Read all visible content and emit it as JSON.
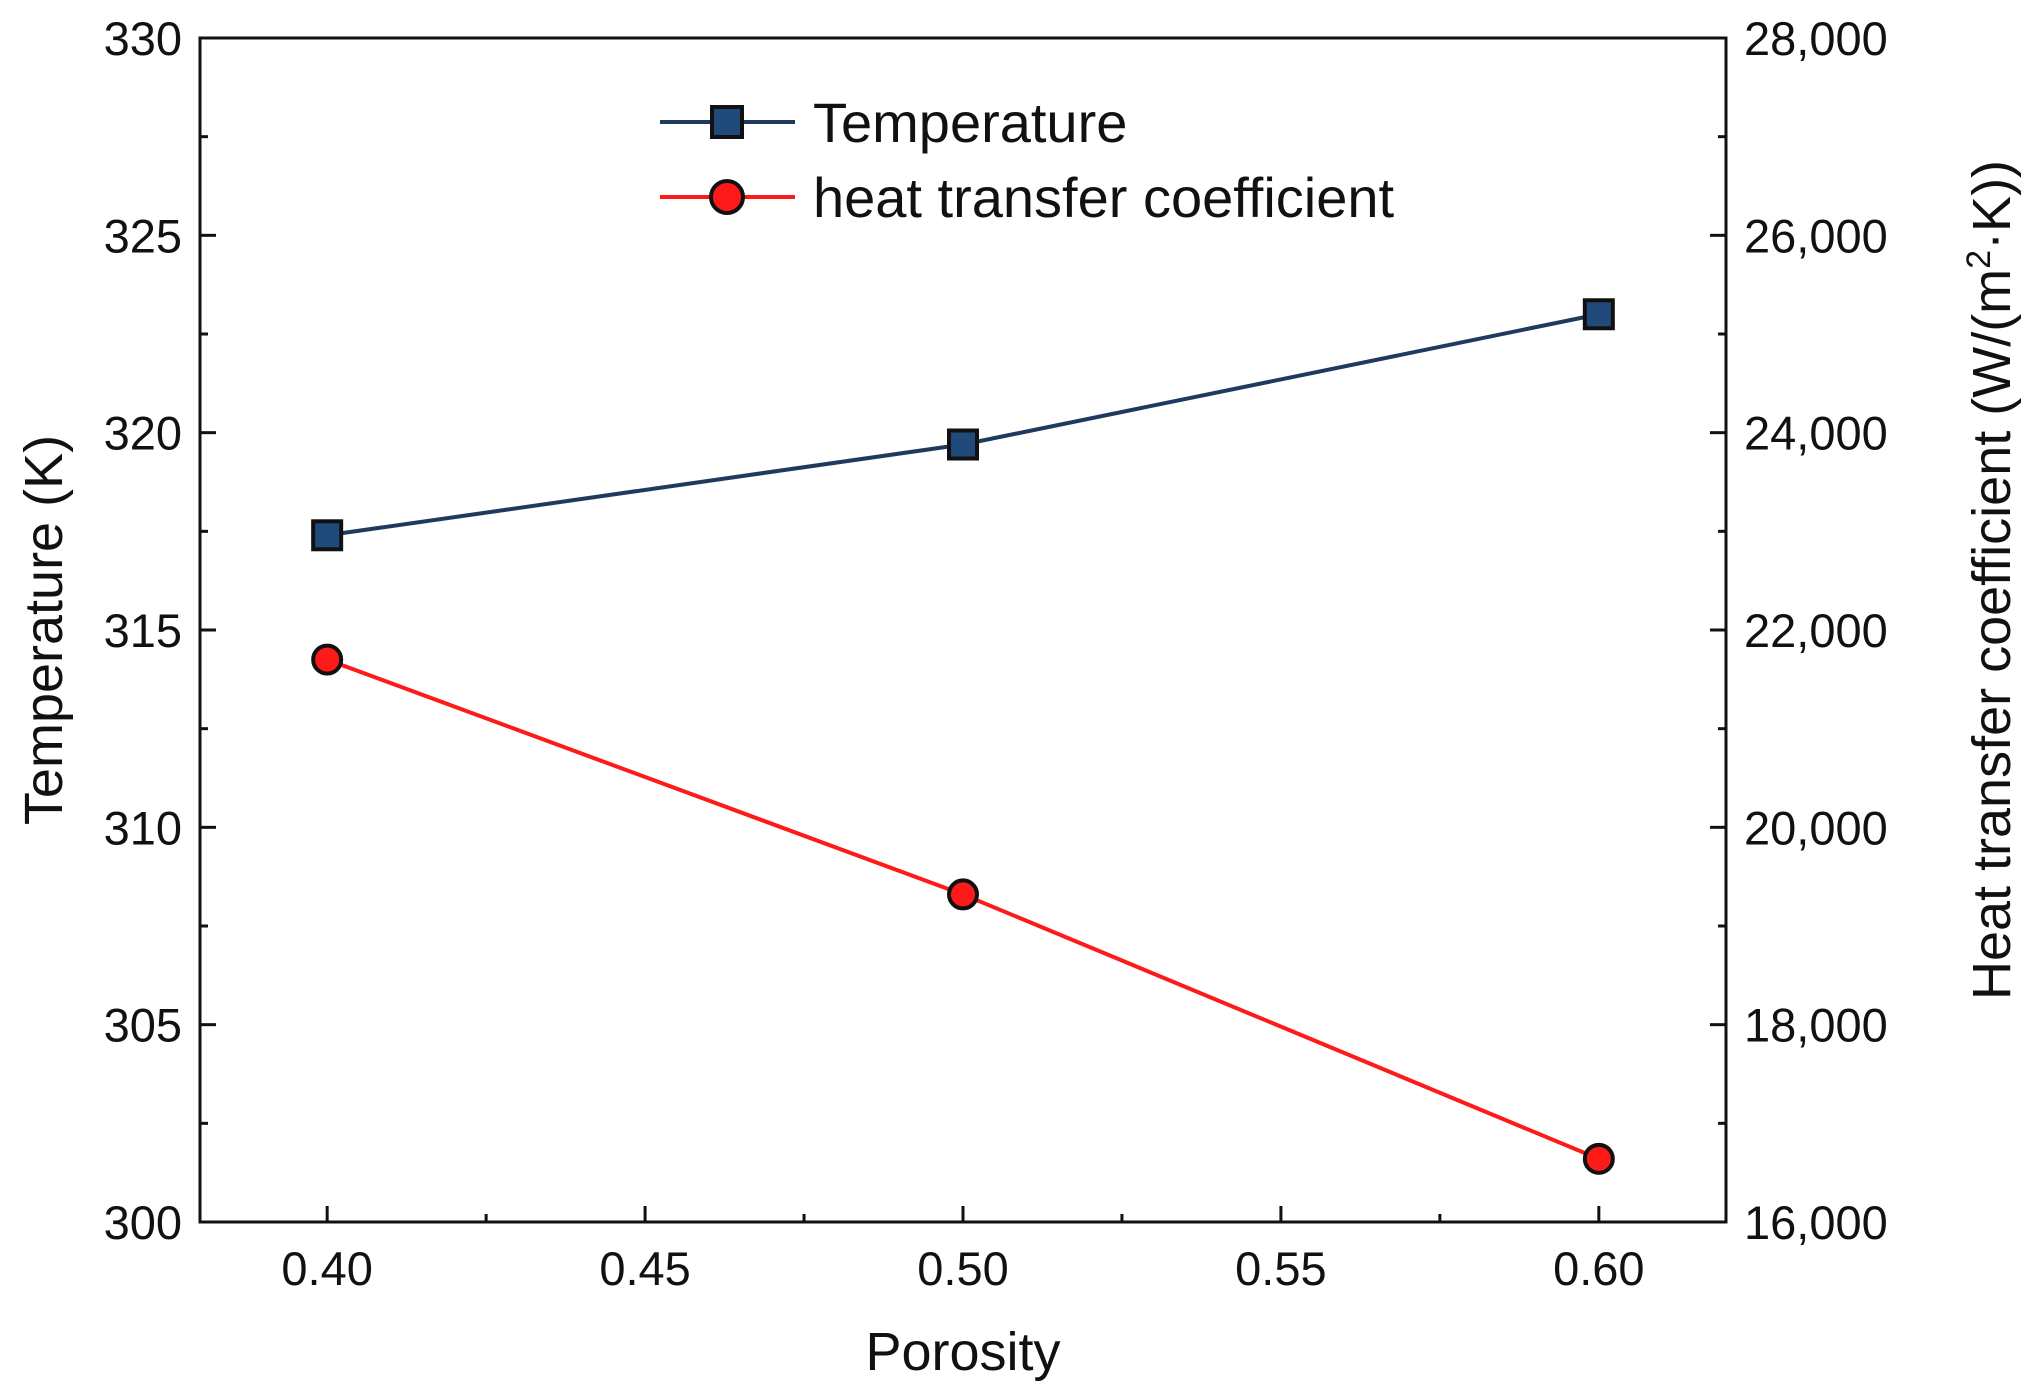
{
  "chart_data": {
    "type": "line",
    "x": [
      0.4,
      0.5,
      0.6
    ],
    "xlim": [
      0.38,
      0.62
    ],
    "x_ticks": [
      0.4,
      0.45,
      0.5,
      0.55,
      0.6
    ],
    "x_tick_labels": [
      "0.40",
      "0.45",
      "0.50",
      "0.55",
      "0.60"
    ],
    "xlabel": "Porosity",
    "ylabel_left": "Temperature (K)",
    "ylim_left": [
      300,
      330
    ],
    "y_ticks_left": [
      300,
      305,
      310,
      315,
      320,
      325,
      330
    ],
    "y_tick_labels_left": [
      "300",
      "305",
      "310",
      "315",
      "320",
      "325",
      "330"
    ],
    "ylabel_right": "Heat transfer coefficient (W/(m²·K))",
    "ylabel_right_parts": {
      "before": "Heat transfer coefficient (W/(m",
      "superscript": "2",
      "after": "·K))"
    },
    "ylim_right": [
      16000,
      28000
    ],
    "y_ticks_right": [
      16000,
      18000,
      20000,
      22000,
      24000,
      26000,
      28000
    ],
    "y_tick_labels_right": [
      "16,000",
      "18,000",
      "20,000",
      "22,000",
      "24,000",
      "26,000",
      "28,000"
    ],
    "grid": false,
    "legend_position": "top-center",
    "series": [
      {
        "name": "Temperature",
        "axis": "left",
        "marker": "square",
        "color": "#1f3a5f",
        "values": [
          317.4,
          319.7,
          323.0
        ]
      },
      {
        "name": "heat transfer coefficient",
        "axis": "right",
        "marker": "circle",
        "color": "#ff1a1a",
        "values": [
          21700,
          19320,
          16640
        ]
      }
    ]
  }
}
